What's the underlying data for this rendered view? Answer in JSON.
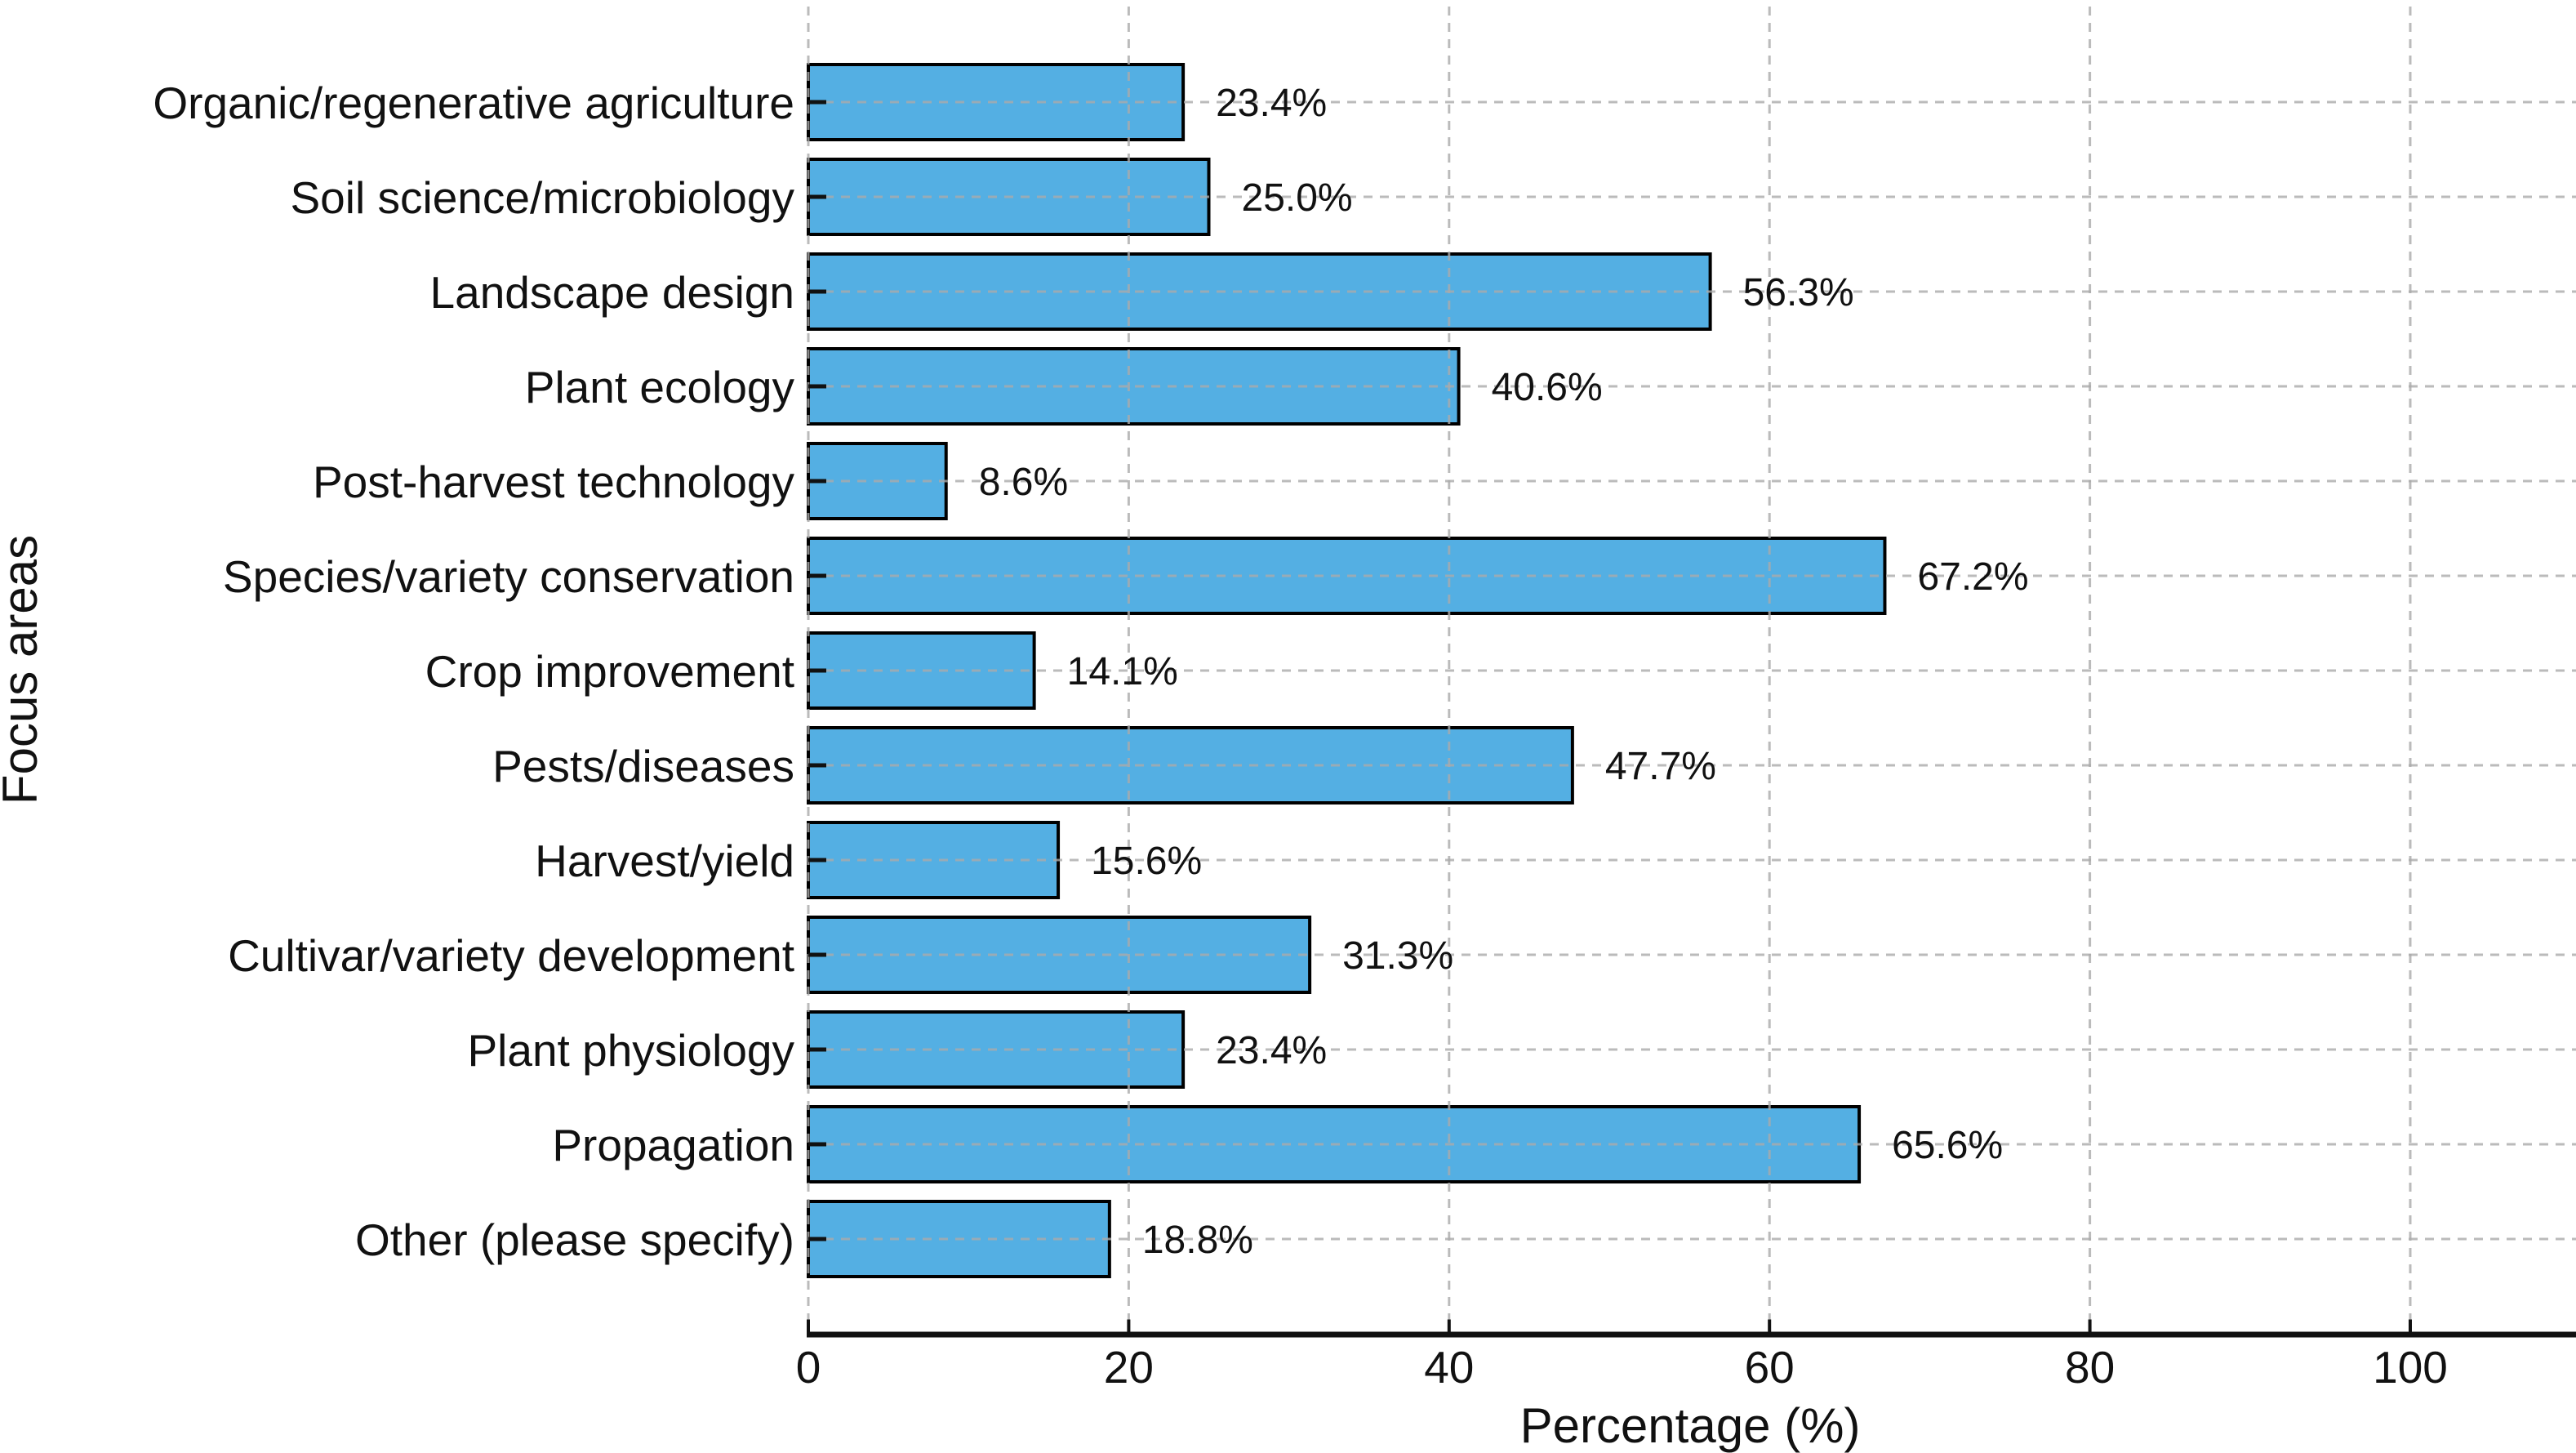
{
  "chart_data": {
    "type": "bar",
    "orientation": "horizontal",
    "title": "",
    "xlabel": "Percentage (%)",
    "ylabel": "Focus areas",
    "categories": [
      "Organic/regenerative agriculture",
      "Soil science/microbiology",
      "Landscape design",
      "Plant ecology",
      "Post-harvest technology",
      "Species/variety conservation",
      "Crop improvement",
      "Pests/diseases",
      "Harvest/yield",
      "Cultivar/variety development",
      "Plant physiology",
      "Propagation",
      "Other (please specify)"
    ],
    "values": [
      23.4,
      25.0,
      56.3,
      40.6,
      8.6,
      67.2,
      14.1,
      47.7,
      15.6,
      31.3,
      23.4,
      65.6,
      18.8
    ],
    "value_labels": [
      "23.4%",
      "25.0%",
      "56.3%",
      "40.6%",
      "8.6%",
      "67.2%",
      "14.1%",
      "47.7%",
      "15.6%",
      "31.3%",
      "23.4%",
      "65.6%",
      "18.8%"
    ],
    "xticks": [
      0,
      20,
      40,
      60,
      80,
      100
    ],
    "xtick_labels": [
      "0",
      "20",
      "40",
      "60",
      "80",
      "100"
    ],
    "xlim": [
      0,
      110
    ],
    "grid": {
      "visible": true,
      "style": "dashed",
      "axes": "both",
      "over_bars": true
    },
    "legend": null,
    "colors": {
      "bar_fill": "#54AFE3",
      "bar_edge": "#000000",
      "gridline": "#aaaaaa",
      "spine": "#111111",
      "text": "#111111"
    }
  }
}
